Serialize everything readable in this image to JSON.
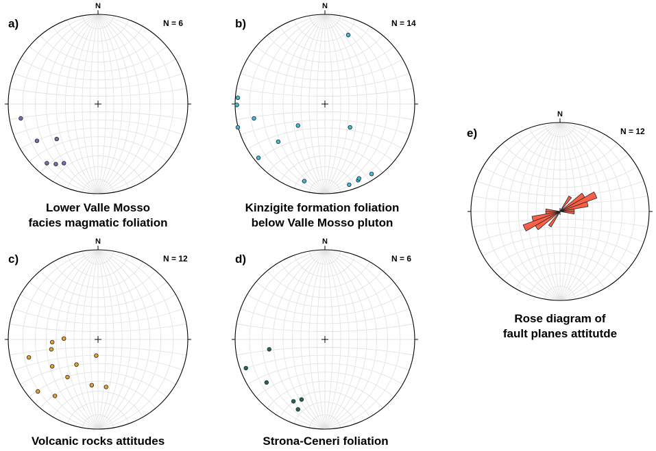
{
  "panels": [
    {
      "id": "a",
      "letter": "a)",
      "north": "N",
      "count": "N = 6",
      "caption": [
        "Lower Valle Mosso",
        "facies magmatic foliation"
      ],
      "point_color": "#7e6bb1",
      "poles": [
        [
          -0.86,
          0.16
        ],
        [
          -0.68,
          0.41
        ],
        [
          -0.46,
          0.39
        ],
        [
          -0.57,
          0.66
        ],
        [
          -0.47,
          0.67
        ],
        [
          -0.38,
          0.66
        ]
      ]
    },
    {
      "id": "b",
      "letter": "b)",
      "north": "N",
      "count": "N = 14",
      "caption": [
        "Kinzigite formation foliation",
        "below Valle Mosso pluton"
      ],
      "point_color": "#40bcd8",
      "poles": [
        [
          0.26,
          -0.77
        ],
        [
          -0.97,
          -0.07
        ],
        [
          -0.98,
          0.01
        ],
        [
          -0.79,
          0.16
        ],
        [
          -0.97,
          0.26
        ],
        [
          -0.3,
          0.24
        ],
        [
          0.28,
          0.26
        ],
        [
          -0.52,
          0.42
        ],
        [
          -0.74,
          0.6
        ],
        [
          -0.23,
          0.86
        ],
        [
          0.27,
          0.9
        ],
        [
          0.37,
          0.85
        ],
        [
          0.52,
          0.78
        ],
        [
          0.38,
          0.83
        ]
      ]
    },
    {
      "id": "c",
      "letter": "c)",
      "north": "N",
      "count": "N = 12",
      "caption": [
        "Volcanic rocks attitudes"
      ],
      "point_color": "#e8a030",
      "poles": [
        [
          -0.51,
          0.03
        ],
        [
          -0.52,
          0.11
        ],
        [
          -0.38,
          -0.01
        ],
        [
          -0.77,
          0.2
        ],
        [
          -0.51,
          0.3
        ],
        [
          -0.24,
          0.28
        ],
        [
          -0.34,
          0.42
        ],
        [
          -0.02,
          0.18
        ],
        [
          -0.67,
          0.58
        ],
        [
          -0.48,
          0.63
        ],
        [
          0.09,
          0.53
        ],
        [
          -0.07,
          0.51
        ]
      ]
    },
    {
      "id": "d",
      "letter": "d)",
      "north": "N",
      "count": "N = 6",
      "caption": [
        "Strona-Ceneri foliation"
      ],
      "point_color": "#1f6b4a",
      "poles": [
        [
          -0.62,
          0.11
        ],
        [
          -0.88,
          0.32
        ],
        [
          -0.65,
          0.48
        ],
        [
          -0.35,
          0.69
        ],
        [
          -0.26,
          0.67
        ],
        [
          -0.3,
          0.78
        ]
      ]
    },
    {
      "id": "e",
      "letter": "e)",
      "north": "N",
      "count": "N = 12",
      "caption": [
        "Rose diagram of",
        "fault planes attitutde"
      ],
      "rose_color": "#fc6147",
      "petals": [
        {
          "azimuth": 65,
          "length": 0.44
        },
        {
          "azimuth": 75,
          "length": 0.32
        },
        {
          "azimuth": 55,
          "length": 0.32
        },
        {
          "azimuth": 35,
          "length": 0.2
        },
        {
          "azimuth": 85,
          "length": 0.16
        },
        {
          "azimuth": 95,
          "length": 0.16
        }
      ]
    }
  ]
}
